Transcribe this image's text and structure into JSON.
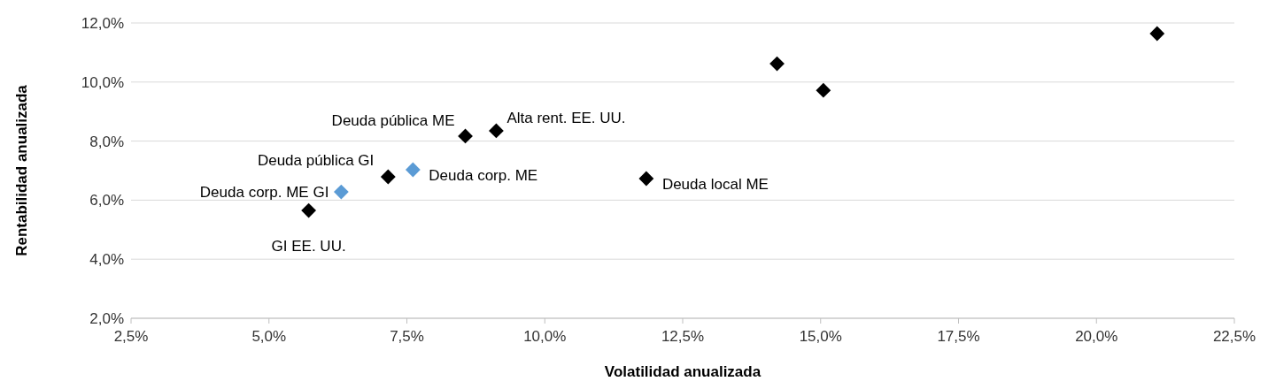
{
  "chart_data": {
    "type": "scatter",
    "xlabel": "Volatilidad anualizada",
    "ylabel": "Rentabilidad anualizada",
    "xlim": [
      2.5,
      22.5
    ],
    "xticks": [
      {
        "value": 2.5,
        "label": "2,5%"
      },
      {
        "value": 5,
        "label": "5,0%"
      },
      {
        "value": 7.5,
        "label": "7,5%"
      },
      {
        "value": 10,
        "label": "10,0%"
      },
      {
        "value": 12.5,
        "label": "12,5%"
      },
      {
        "value": 15,
        "label": "15,0%"
      },
      {
        "value": 17.5,
        "label": "17,5%"
      },
      {
        "value": 20,
        "label": "20,0%"
      },
      {
        "value": 22.5,
        "label": "22,5%"
      }
    ],
    "ylim": [
      2,
      12
    ],
    "yticks": [
      {
        "value": 2,
        "label": "2,0%"
      },
      {
        "value": 4,
        "label": "4,0%"
      },
      {
        "value": 6,
        "label": "6,0%"
      },
      {
        "value": 8,
        "label": "8,0%"
      },
      {
        "value": 10,
        "label": "10,0%"
      },
      {
        "value": 12,
        "label": "12,0%"
      }
    ],
    "grid": "y",
    "marker": "diamond",
    "series": [
      {
        "color": "#000000",
        "x": [
          5.72,
          7.16,
          8.56,
          9.12,
          11.84,
          14.21,
          15.05,
          21.1
        ],
        "values": [
          5.65,
          6.79,
          8.17,
          8.35,
          6.73,
          10.62,
          9.72,
          11.64
        ]
      },
      {
        "color": "#5b9bd5",
        "x": [
          6.31,
          7.61
        ],
        "values": [
          6.28,
          7.03
        ]
      }
    ],
    "annotations": [
      {
        "text": "GI EE. UU.",
        "x": 5.72,
        "y": 5.65
      },
      {
        "text": "Deuda pública GI",
        "x": 7.16,
        "y": 6.79
      },
      {
        "text": "Deuda pública ME",
        "x": 8.56,
        "y": 8.17
      },
      {
        "text": "Alta rent. EE. UU.",
        "x": 9.12,
        "y": 8.35
      },
      {
        "text": "Deuda local ME",
        "x": 11.84,
        "y": 6.73
      },
      {
        "text": "Deuda corp. ME GI",
        "x": 6.31,
        "y": 6.28
      },
      {
        "text": "Deuda corp. ME",
        "x": 7.61,
        "y": 7.03
      }
    ]
  }
}
